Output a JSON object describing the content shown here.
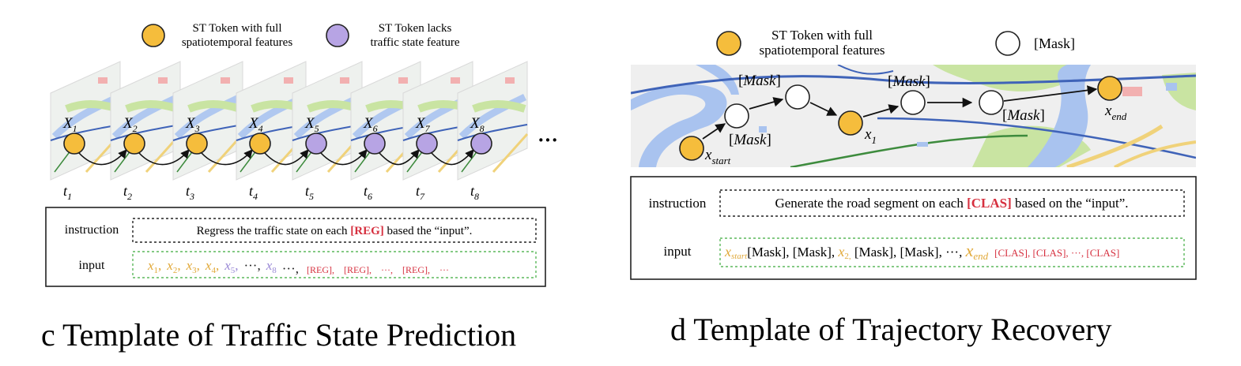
{
  "panel_c": {
    "legend": {
      "full": {
        "line1": "ST Token with full",
        "line2": "spatiotemporal features",
        "color": "#f5bd3c"
      },
      "lacks": {
        "line1": "ST Token lacks",
        "line2": "traffic state feature",
        "color": "#b7a4e4"
      }
    },
    "token_labels": [
      "X",
      "X",
      "X",
      "X",
      "X",
      "X",
      "X",
      "X"
    ],
    "token_subs": [
      "1",
      "2",
      "3",
      "4",
      "5",
      "6",
      "7",
      "8"
    ],
    "time_labels": [
      "t",
      "t",
      "t",
      "t",
      "t",
      "t",
      "t",
      "t"
    ],
    "time_subs": [
      "1",
      "2",
      "3",
      "4",
      "5",
      "6",
      "7",
      "8"
    ],
    "ellipsis": "···",
    "instruction_label": "instruction",
    "instruction_pre": "Regress the traffic state on each ",
    "instruction_tag": "[REG]",
    "instruction_post": " based the “input”.",
    "input_label": "input",
    "input_tokens": [
      {
        "base": "x",
        "sub": "1",
        "color": "#e1a93a",
        "sep": ","
      },
      {
        "base": "x",
        "sub": "2",
        "color": "#e1a93a",
        "sep": ","
      },
      {
        "base": "x",
        "sub": "3",
        "color": "#e1a93a",
        "sep": ","
      },
      {
        "base": "x",
        "sub": "4",
        "color": "#e1a93a",
        "sep": ","
      },
      {
        "base": "x",
        "sub": "5",
        "color": "#9b8ad6",
        "sep": ","
      },
      {
        "base": "···",
        "sub": "",
        "color": "#222222",
        "sep": ","
      },
      {
        "base": "x",
        "sub": "8",
        "color": "#9b8ad6",
        "sep": ""
      },
      {
        "base": "···",
        "sub": "",
        "color": "#222222",
        "sep": ","
      }
    ],
    "input_reg_tokens": [
      "[REG],",
      "[REG],",
      "···,",
      "[REG],",
      "···"
    ],
    "caption_letter": "c",
    "caption_text": " Template of Traffic State Prediction"
  },
  "panel_d": {
    "legend": {
      "full": {
        "line1": "ST Token with full",
        "line2": "spatiotemporal features",
        "color": "#f5bd3c"
      },
      "mask": {
        "label": "[Mask]",
        "color": "#ffffff"
      }
    },
    "node_labels": {
      "x_start_base": "x",
      "x_start_sub": "start",
      "x1_base": "x",
      "x1_sub": "1",
      "x_end_base": "x",
      "x_end_sub": "end",
      "mask": "[Mask]"
    },
    "instruction_label": "instruction",
    "instruction_pre": "Generate the road segment on each ",
    "instruction_tag": "[CLAS]",
    "instruction_post": " based on the “input”.",
    "input_label": "input",
    "input_start_sub": "start",
    "input_mask_seq": "[Mask], [Mask], ",
    "input_x2_sub": "2,",
    "input_mask_seq2": " [Mask], [Mask], ···, ",
    "input_end_sub": "end",
    "input_clas": "[CLAS], [CLAS], ···, [CLAS]",
    "caption_letter": "d",
    "caption_text": " Template of Trajectory Recovery"
  },
  "colors": {
    "accent_red": "#d6303f",
    "token_gold": "#f5bd3c",
    "token_purple": "#b7a4e4",
    "dashed_green": "#5bb85b"
  }
}
